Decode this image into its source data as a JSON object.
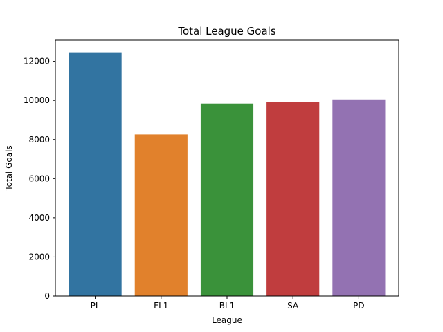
{
  "chart_data": {
    "type": "bar",
    "title": "Total League Goals",
    "xlabel": "League",
    "ylabel": "Total Goals",
    "categories": [
      "PL",
      "FL1",
      "BL1",
      "SA",
      "PD"
    ],
    "values": [
      12460,
      8260,
      9840,
      9910,
      10050
    ],
    "colors": [
      "#3274a1",
      "#e1812c",
      "#3a923a",
      "#c03d3e",
      "#9372b2"
    ],
    "ylim": [
      0,
      13083
    ],
    "yticks": [
      0,
      2000,
      4000,
      6000,
      8000,
      10000,
      12000
    ],
    "grid": false,
    "legend": false
  }
}
